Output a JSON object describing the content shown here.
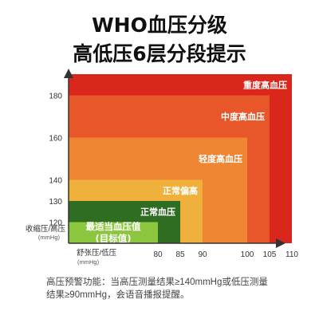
{
  "titles": {
    "line1": "WHO血压分级",
    "line2": "高低压6层分段提示"
  },
  "note": {
    "line1": "高压预警功能：当高压测量结果≥140mmHg或低压测量",
    "line2": "结果≥90mmHg，会语音播报提醒。"
  },
  "chart_data": {
    "type": "area",
    "title": "WHO血压分级",
    "subtitle": "高低压6层分段提示",
    "ylabel": "收缩压/高压",
    "yunit": "(mmHg)",
    "xlabel": "舒张压/低压",
    "xunit": "(mmHg)",
    "ylim": [
      110,
      190
    ],
    "xlim": [
      60,
      110
    ],
    "y_ticks": [
      120,
      130,
      140,
      160,
      180
    ],
    "x_ticks": [
      80,
      85,
      90,
      100,
      105,
      110
    ],
    "zones": [
      {
        "label": "重度高血压",
        "x_max": 110,
        "y_max": 190,
        "color": "#d9271b"
      },
      {
        "label": "中度高血压",
        "x_max": 105,
        "y_max": 180,
        "color": "#e8572a"
      },
      {
        "label": "轻度高血压",
        "x_max": 100,
        "y_max": 160,
        "color": "#ee8634"
      },
      {
        "label": "正常偏高",
        "x_max": 90,
        "y_max": 140,
        "color": "#f0b03c"
      },
      {
        "label": "正常血压",
        "x_max": 85,
        "y_max": 130,
        "color": "#2f6e22"
      },
      {
        "label": "最适当血压值\n(目标值)",
        "x_max": 80,
        "y_max": 120,
        "color": "#8cc63f"
      }
    ]
  }
}
